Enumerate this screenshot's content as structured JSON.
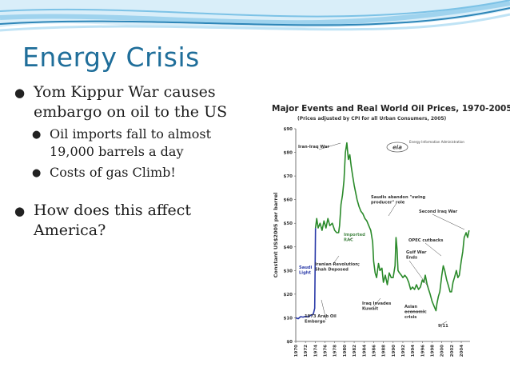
{
  "slide": {
    "title": "Energy Crisis",
    "bullets": [
      {
        "text": "Yom Kippur War causes embargo on oil to the US",
        "level": 1
      },
      {
        "text": "Oil imports fall to almost 19,000 barrels a day",
        "level": 2
      },
      {
        "text": "Costs of gas Climb!",
        "level": 2
      },
      {
        "text": "How does this affect America?",
        "level": 1
      }
    ],
    "colors": {
      "title": "#1f6e9a",
      "wave_dark": "#2e86b8",
      "wave_light": "#9fd3ee",
      "line_green": "#2a8a2a",
      "line_blue": "#2a3aa8"
    }
  },
  "chart_data": {
    "type": "line",
    "title": "Major Events and Real World Oil Prices, 1970-2005",
    "subtitle": "(Prices adjusted by CPI for all Urban Consumers, 2005)",
    "source_label": "Energy Information Administration",
    "logo_text": "eia",
    "ylabel": "Constant US$2005 per barrel",
    "xlabel": "",
    "ylim": [
      0,
      90
    ],
    "xlim": [
      1970,
      2005.8
    ],
    "grid": false,
    "yticks": [
      {
        "v": 0,
        "label": "$0"
      },
      {
        "v": 10,
        "label": "$10"
      },
      {
        "v": 20,
        "label": "$20"
      },
      {
        "v": 30,
        "label": "$30"
      },
      {
        "v": 40,
        "label": "$40"
      },
      {
        "v": 50,
        "label": "$50"
      },
      {
        "v": 60,
        "label": "$60"
      },
      {
        "v": 70,
        "label": "$70"
      },
      {
        "v": 80,
        "label": "$80"
      },
      {
        "v": 90,
        "label": "$90"
      }
    ],
    "xticks": [
      "1970",
      "1972",
      "1974",
      "1976",
      "1978",
      "1980",
      "1982",
      "1984",
      "1986",
      "1988",
      "1990",
      "1992",
      "1994",
      "1996",
      "1998",
      "2000",
      "2002",
      "2004"
    ],
    "series": [
      {
        "color": "#2a3aa8",
        "x": [
          1970,
          1970.5,
          1971,
          1971.5,
          1972,
          1972.5,
          1973,
          1973.6,
          1973.9,
          1974.05
        ],
        "y": [
          10,
          9.6,
          10.5,
          10.3,
          10.6,
          10.4,
          11,
          11.5,
          14,
          48
        ]
      },
      {
        "color": "#2a8a2a",
        "x": [
          1974.05,
          1974.3,
          1974.6,
          1975,
          1975.4,
          1975.8,
          1976.2,
          1976.6,
          1977,
          1977.5,
          1978,
          1978.4,
          1978.8,
          1979,
          1979.3,
          1979.6,
          1979.9,
          1980.2,
          1980.5,
          1980.8,
          1981.1,
          1981.4,
          1981.7,
          1982,
          1982.3,
          1982.6,
          1983,
          1983.4,
          1983.8,
          1984.2,
          1984.6,
          1985,
          1985.4,
          1985.8,
          1986,
          1986.3,
          1986.6,
          1987,
          1987.3,
          1987.7,
          1988,
          1988.4,
          1988.8,
          1989.2,
          1989.6,
          1990,
          1990.4,
          1990.6,
          1990.8,
          1991,
          1991.3,
          1991.7,
          1992,
          1992.4,
          1992.8,
          1993.2,
          1993.6,
          1994,
          1994.4,
          1994.8,
          1995.2,
          1995.6,
          1996,
          1996.3,
          1996.6,
          1997,
          1997.3,
          1997.6,
          1998,
          1998.4,
          1998.8,
          1999,
          1999.3,
          1999.6,
          2000,
          2000.3,
          2000.6,
          2001,
          2001.3,
          2001.7,
          2002,
          2002.3,
          2002.6,
          2003,
          2003.3,
          2003.6,
          2004,
          2004.3,
          2004.6,
          2005,
          2005.3,
          2005.6
        ],
        "y": [
          48,
          52,
          48,
          50,
          47,
          51,
          48,
          52,
          49,
          50,
          47,
          46,
          46,
          49,
          58,
          62,
          68,
          80,
          84,
          77,
          79,
          74,
          70,
          66,
          63,
          60,
          57,
          55,
          54,
          52,
          51,
          49,
          47,
          42,
          34,
          29,
          27,
          33,
          30,
          31,
          25,
          28,
          24,
          29,
          27,
          27,
          32,
          44,
          39,
          30,
          29,
          28,
          27,
          28,
          27,
          25,
          22,
          23,
          22,
          24,
          22,
          23,
          26,
          25,
          28,
          24,
          22,
          20,
          17,
          15,
          13,
          16,
          19,
          21,
          28,
          32,
          30,
          26,
          24,
          21,
          21,
          25,
          27,
          30,
          27,
          28,
          34,
          38,
          44,
          46,
          44,
          47
        ]
      }
    ],
    "annotations": [
      {
        "text": "Iran-Iraq War",
        "x": 1975.5,
        "y": 83,
        "lines": [
          "Iran-Iraq War"
        ]
      },
      {
        "text": "Saudis abandon \"swing producer\" role",
        "lines": [
          "Saudis abandon \"swing",
          "producer\" role"
        ]
      },
      {
        "text": "Second Iraq War",
        "lines": [
          "Second Iraq War"
        ]
      },
      {
        "text": "Imported RAC",
        "lines": [
          "Imported",
          "RAC"
        ]
      },
      {
        "text": "OPEC cutbacks",
        "lines": [
          "OPEC cutbacks"
        ]
      },
      {
        "text": "Iranian Revolution; Shah Deposed",
        "lines": [
          "Iranian Revolution;",
          "Shah Deposed"
        ]
      },
      {
        "text": "Gulf War Ends",
        "lines": [
          "Gulf War",
          "Ends"
        ]
      },
      {
        "text": "Saudi Light",
        "lines": [
          "Saudi",
          "Light"
        ]
      },
      {
        "text": "9/11",
        "lines": [
          "9/11"
        ]
      },
      {
        "text": "Iraq Invades Kuwait",
        "lines": [
          "Iraq Invades",
          "Kuwait"
        ]
      },
      {
        "text": "Asian economic crisis",
        "lines": [
          "Asian",
          "economic",
          "crisis"
        ]
      },
      {
        "text": "1973 Arab Oil Embargo",
        "lines": [
          "1973 Arab Oil",
          "Embargo"
        ]
      }
    ]
  }
}
